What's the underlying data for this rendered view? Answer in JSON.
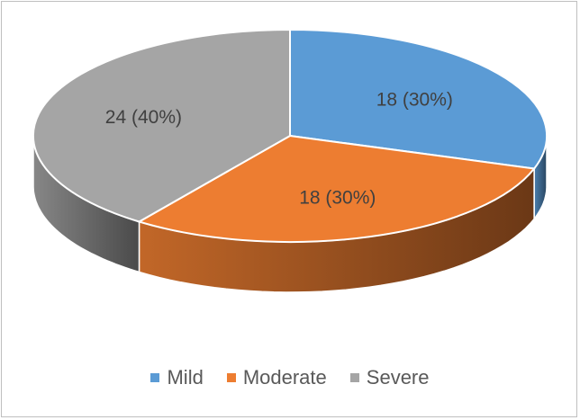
{
  "chart_data": {
    "type": "pie",
    "title": "",
    "slices": [
      {
        "name": "Mild",
        "value": 18,
        "label": "18 (30%)",
        "color": "#5B9BD5"
      },
      {
        "name": "Moderate",
        "value": 18,
        "label": "18 (30%)",
        "color": "#ED7D31"
      },
      {
        "name": "Severe",
        "value": 24,
        "label": "24 (40%)",
        "color": "#A5A5A5"
      }
    ],
    "legend_position": "bottom",
    "style": "3d"
  }
}
